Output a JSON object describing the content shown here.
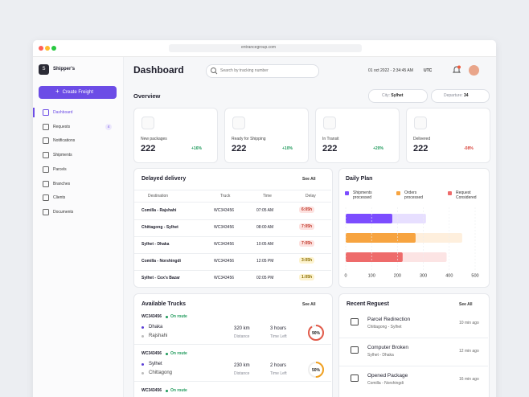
{
  "browser": {
    "url": "entrancegroup.com"
  },
  "sidebar": {
    "brand_initial": "S",
    "brand": "Shipper's",
    "create_button": "Create Freight",
    "nav": [
      {
        "label": "Dashboard"
      },
      {
        "label": "Requests",
        "badge": "4"
      },
      {
        "label": "Notifications"
      },
      {
        "label": "Shipments"
      },
      {
        "label": "Parcels"
      },
      {
        "label": "Branches"
      },
      {
        "label": "Clients"
      },
      {
        "label": "Documents"
      }
    ]
  },
  "header": {
    "title": "Dashboard",
    "search_placeholder": "Search by tracking number",
    "datetime": "01 oct 2022 - 2:34:45 AM",
    "timezone": "UTC"
  },
  "overview": {
    "title": "Overview",
    "city_label": "City:",
    "city": "Sylhet",
    "departure_label": "Departure:",
    "departure": "34",
    "cards": [
      {
        "label": "New packages",
        "value": "222",
        "change": "+16%"
      },
      {
        "label": "Ready for Shipping",
        "value": "222",
        "change": "+10%"
      },
      {
        "label": "In Transit",
        "value": "222",
        "change": "+20%"
      },
      {
        "label": "Delivered",
        "value": "222",
        "change": "-08%"
      }
    ]
  },
  "delayed_delivery": {
    "title": "Delayed delivery",
    "see_all": "See All",
    "columns": [
      "Destination",
      "Truck",
      "Time",
      "Delay"
    ],
    "rows": [
      [
        "Comilla - Rajshahi",
        "WC343456",
        "07:05 AM",
        "6:05h"
      ],
      [
        "Chittagong - Sylhet",
        "WC343456",
        "08:00 AM",
        "7:05h"
      ],
      [
        "Sylhet - Dhaka",
        "WC343456",
        "10:05 AM",
        "7:05h"
      ],
      [
        "Comilla - Norshingdi",
        "WC343456",
        "12:05 PM",
        "3:05h"
      ],
      [
        "Sylhet - Cox's Bazar",
        "WC343456",
        "02:05 PM",
        "1:05h"
      ]
    ]
  },
  "daily_plan": {
    "title": "Daily Plan",
    "xlim": [
      0,
      500
    ],
    "xticks": [
      0,
      100,
      200,
      300,
      400,
      500
    ],
    "series": [
      {
        "name": "Shipments processed",
        "color": "#7c4dff",
        "values": [
          180,
          310
        ]
      },
      {
        "name": "Orders processed",
        "color": "#f7a440",
        "values": [
          270,
          450
        ]
      },
      {
        "name": "Request Considered",
        "color": "#ee6b6b",
        "values": [
          220,
          390
        ]
      }
    ]
  },
  "available_trucks": {
    "title": "Available Trucks",
    "see_all": "See All",
    "trucks": [
      {
        "id": "WC343456",
        "status": "On route",
        "from": "Dhaka",
        "to": "Rajshahi",
        "distance": "320 km",
        "distance_label": "Distance",
        "time": "3 hours",
        "time_label": "Time Left",
        "progress": {
          "value": 90,
          "label": "90%"
        }
      },
      {
        "id": "WC343456",
        "status": "On route",
        "from": "Sylhet",
        "to": "Chittagong",
        "distance": "230 km",
        "distance_label": "Distance",
        "time": "2 hours",
        "time_label": "Time Left",
        "progress": {
          "value": 50,
          "label": "50%"
        }
      },
      {
        "id": "WC343456",
        "status": "On route"
      }
    ]
  },
  "recent_request": {
    "title": "Recent Reguest",
    "see_all": "See All",
    "items": [
      {
        "title": "Parcel Redirection",
        "route": "Chittagong - Sylhet",
        "time": "10 min ago"
      },
      {
        "title": "Computer Broken",
        "route": "Sylhet - Dhaka",
        "time": "12 min ago"
      },
      {
        "title": "Opened Package",
        "route": "Comilla - Norshingdi",
        "time": "16 min ago"
      }
    ]
  }
}
